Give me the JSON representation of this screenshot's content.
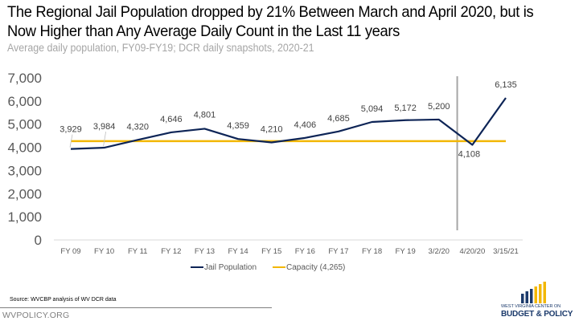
{
  "header": {
    "title_line1": "The Regional Jail Population dropped by 21% Between March and April 2020, but is",
    "title_line2": "Now Higher than Any Average Daily Count in the Last 11 years",
    "subtitle": "Average daily population, FY09-FY19; DCR daily snapshots, 2020-21"
  },
  "chart_data": {
    "type": "line",
    "title": "The Regional Jail Population dropped by 21% Between March and April 2020, but is Now Higher than Any Average Daily Count in the Last 11 years",
    "subtitle": "Average daily population, FY09-FY19; DCR daily snapshots, 2020-21",
    "xlabel": "",
    "ylabel": "",
    "categories": [
      "FY 09",
      "FY 10",
      "FY 11",
      "FY 12",
      "FY 13",
      "FY 14",
      "FY 15",
      "FY 16",
      "FY 17",
      "FY 18",
      "FY 19",
      "3/2/20",
      "4/20/20",
      "3/15/21"
    ],
    "series": [
      {
        "name": "Jail Population",
        "color": "#0d2456",
        "values": [
          3929,
          3984,
          4320,
          4646,
          4801,
          4359,
          4210,
          4406,
          4685,
          5094,
          5172,
          5200,
          4108,
          6135
        ],
        "labels": [
          "3,929",
          "3,984",
          "4,320",
          "4,646",
          "4,801",
          "4,359",
          "4,210",
          "4,406",
          "4,685",
          "5,094",
          "5,172",
          "5,200",
          "4,108",
          "6,135"
        ]
      },
      {
        "name": "Capacity (4,265)",
        "color": "#f2b705",
        "values": [
          4265,
          4265,
          4265,
          4265,
          4265,
          4265,
          4265,
          4265,
          4265,
          4265,
          4265,
          4265,
          4265,
          4265
        ]
      }
    ],
    "ylim": [
      0,
      7000
    ],
    "yticks": [
      0,
      1000,
      2000,
      3000,
      4000,
      5000,
      6000,
      7000
    ],
    "ytick_labels": [
      "0",
      "1,000",
      "2,000",
      "3,000",
      "4,000",
      "5,000",
      "6,000",
      "7,000"
    ],
    "grid": false,
    "legend": {
      "placement": "bottom",
      "entries": [
        "Jail Population",
        "Capacity (4,265)"
      ]
    },
    "annotations": [
      {
        "type": "vertical-separator",
        "between": [
          "3/2/20",
          "4/20/20"
        ],
        "color": "#a6a6a6"
      }
    ]
  },
  "footer": {
    "source": "Source: WVCBP analysis of WV DCR data",
    "site": "WVPOLICY.ORG"
  },
  "logo": {
    "line1": "WEST VIRGINIA CENTER ON",
    "line2": "BUDGET & POLICY",
    "colors": {
      "navy": "#1b3a6b",
      "gold": "#f2b705"
    }
  }
}
